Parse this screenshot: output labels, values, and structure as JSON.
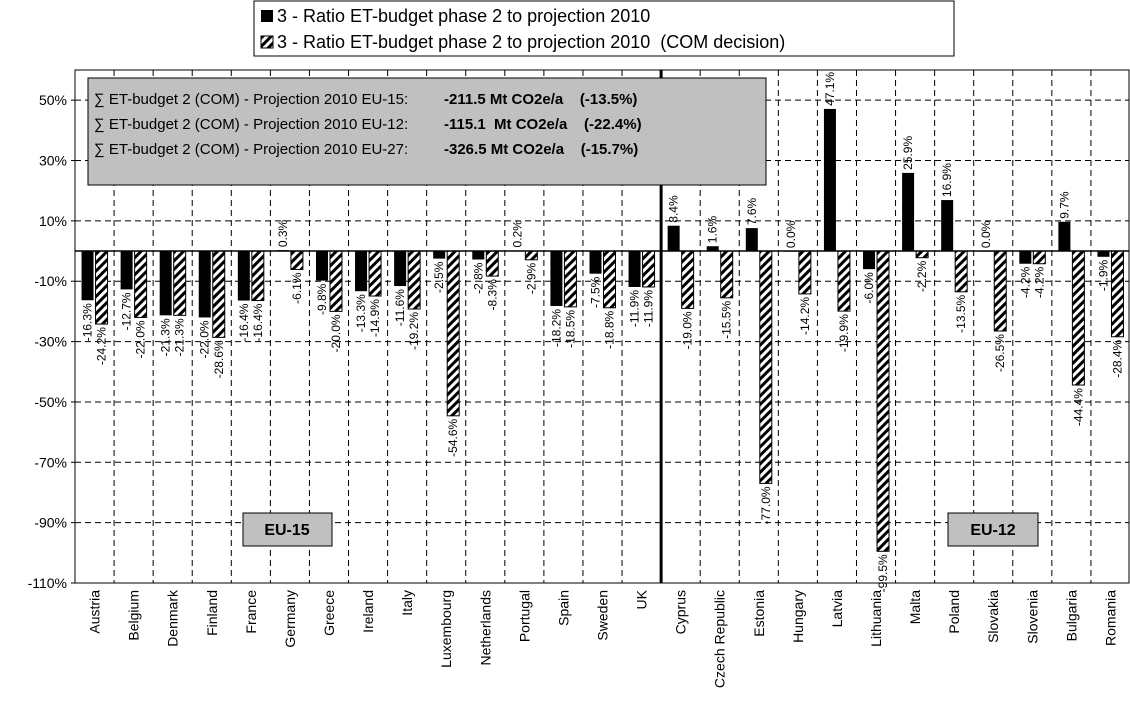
{
  "chart_data": {
    "type": "bar",
    "ylim": [
      -110,
      60
    ],
    "yticks": [
      "50%",
      "30%",
      "10%",
      "-10%",
      "-30%",
      "-50%",
      "-70%",
      "-90%",
      "-110%"
    ],
    "ytick_values": [
      50,
      30,
      10,
      -10,
      -30,
      -50,
      -70,
      -90,
      -110
    ],
    "grid": true,
    "legend_position": "top",
    "categories": [
      "Austria",
      "Belgium",
      "Denmark",
      "Finland",
      "France",
      "Germany",
      "Greece",
      "Ireland",
      "Italy",
      "Luxembourg",
      "Netherlands",
      "Portugal",
      "Spain",
      "Sweden",
      "UK",
      "Cyprus",
      "Czech Republic",
      "Estonia",
      "Hungary",
      "Latvia",
      "Lithuania",
      "Malta",
      "Poland",
      "Slovakia",
      "Slovenia",
      "Bulgaria",
      "Romania"
    ],
    "series": [
      {
        "name": "3 - Ratio ET-budget phase 2 to projection 2010",
        "color": "#000000",
        "pattern": "solid",
        "values": [
          -16.3,
          -12.7,
          -21.3,
          -22.0,
          -16.4,
          0.3,
          -9.8,
          -13.3,
          -11.6,
          -2.5,
          -2.8,
          0.2,
          -18.2,
          -7.5,
          -11.9,
          8.4,
          1.6,
          7.6,
          0.0,
          47.1,
          -6.0,
          25.9,
          16.9,
          0.0,
          -4.2,
          9.7,
          -1.9
        ],
        "labels": [
          "-16.3%",
          "-12.7%",
          "-21.3%",
          "-22.0%",
          "-16.4%",
          "0.3%",
          "-9.8%",
          "-13.3%",
          "-11.6%",
          "-2.5%",
          "-2.8%",
          "0.2%",
          "-18.2%",
          "-7.5%",
          "-11.9%",
          "8.4%",
          "1.6%",
          "7.6%",
          "0.0%",
          "47.1%",
          "-6.0%",
          "25.9%",
          "16.9%",
          "0.0%",
          "-4.2%",
          "9.7%",
          "-1.9%"
        ]
      },
      {
        "name": "3 - Ratio ET-budget phase 2 to projection 2010  (COM decision)",
        "color": "#000000",
        "pattern": "diagonal-hatch",
        "values": [
          -24.2,
          -22.0,
          -21.3,
          -28.6,
          -16.4,
          -6.1,
          -20.0,
          -14.9,
          -19.2,
          -54.6,
          -8.3,
          -2.9,
          -18.5,
          -18.8,
          -11.9,
          -19.0,
          -15.5,
          -77.0,
          -14.2,
          -19.9,
          -99.5,
          -2.2,
          -13.5,
          -26.5,
          -4.2,
          -44.4,
          -28.4
        ],
        "labels": [
          "-24.2%",
          "-22.0%",
          "-21.3%",
          "-28.6%",
          "-16.4%",
          "-6.1%",
          "-20.0%",
          "-14.9%",
          "-19.2%",
          "-54.6%",
          "-8.3%",
          "-2.9%",
          "-18.5%",
          "-18.8%",
          "-11.9%",
          "-19.0%",
          "-15.5%",
          "-77.0%",
          "-14.2%",
          "-19.9%",
          "-99.5%",
          "-2.2%",
          "-13.5%",
          "-26.5%",
          "-4.2%",
          "-44.4%",
          "-28.4%"
        ]
      }
    ],
    "annotations": {
      "lines": [
        {
          "label": "∑ ET-budget 2 (COM) - Projection 2010 EU-15:",
          "value": "-211.5 Mt CO2e/a    (-13.5%)"
        },
        {
          "label": "∑ ET-budget 2 (COM) - Projection 2010 EU-12:",
          "value": "-115.1  Mt CO2e/a    (-22.4%)"
        },
        {
          "label": "∑ ET-budget 2 (COM) - Projection 2010 EU-27:",
          "value": "-326.5 Mt CO2e/a    (-15.7%)"
        }
      ],
      "groups": [
        "EU-15",
        "EU-12"
      ],
      "group_divider_after_index": 14
    }
  }
}
